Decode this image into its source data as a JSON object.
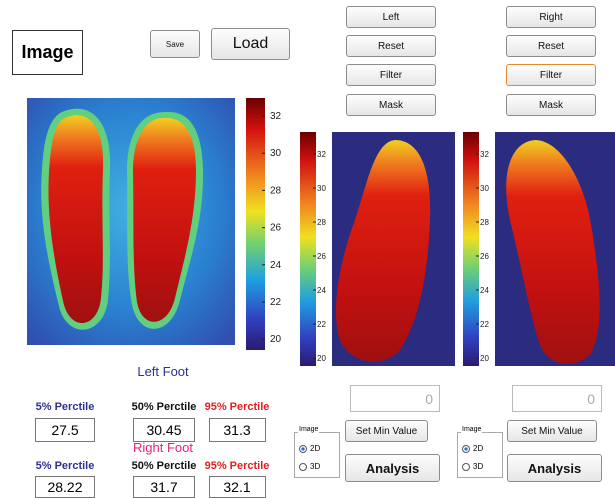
{
  "image_label": "Image",
  "buttons": {
    "save": "Save",
    "load": "Load",
    "left": "Left",
    "reset_left": "Reset",
    "filter_left": "Filter",
    "mask_left": "Mask",
    "right": "Right",
    "reset_right": "Reset",
    "filter_right": "Filter",
    "mask_right": "Mask",
    "set_min_left": "Set Min Value",
    "analysis_left": "Analysis",
    "set_min_right": "Set Min Value",
    "analysis_right": "Analysis"
  },
  "min_value_left": 0,
  "min_value_right": 0,
  "radio_left": {
    "title": "Image",
    "options": [
      "2D",
      "3D"
    ]
  },
  "radio_right": {
    "title": "Image",
    "options": [
      "2D",
      "3D"
    ]
  },
  "colorbar_main": {
    "ticks": [
      32,
      30,
      28,
      26,
      24,
      22,
      20
    ]
  },
  "colorbar_left": {
    "ticks": [
      32,
      30,
      28,
      26,
      24,
      22,
      20
    ]
  },
  "colorbar_right": {
    "ticks": [
      32,
      30,
      28,
      26,
      24,
      22,
      20
    ]
  },
  "left_foot": {
    "title": "Left Foot",
    "headers": [
      "5% Perctile",
      "50% Perctile",
      "95% Perctile"
    ],
    "values": [
      27.5,
      30.45,
      31.3
    ]
  },
  "right_foot": {
    "title": "Right Foot",
    "headers": [
      "5% Perctile",
      "50% Perctile",
      "95% Perctile"
    ],
    "values": [
      28.22,
      31.7,
      32.1
    ]
  }
}
